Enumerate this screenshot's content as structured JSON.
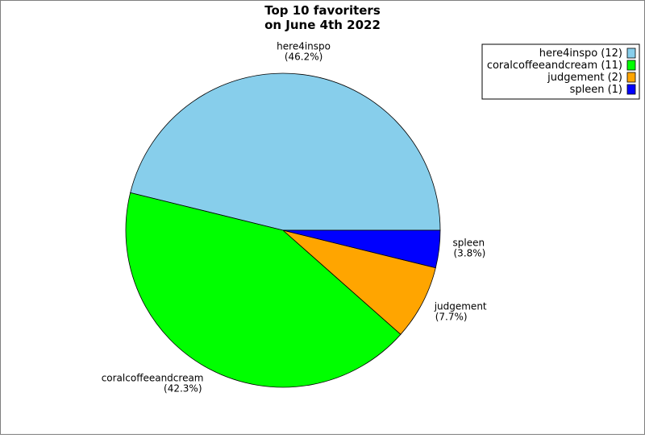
{
  "chart_data": {
    "type": "pie",
    "title_lines": [
      "Top 10 favoriters",
      "on June 4th 2022"
    ],
    "slices": [
      {
        "label": "here4inspo",
        "value": 12,
        "percent_text": "(46.2%)",
        "legend_text": "here4inspo (12)",
        "color": "#87ceeb"
      },
      {
        "label": "coralcoffeeandcream",
        "value": 11,
        "percent_text": "(42.3%)",
        "legend_text": "coralcoffeeandcream (11)",
        "color": "#00ff00"
      },
      {
        "label": "judgement",
        "value": 2,
        "percent_text": "(7.7%)",
        "legend_text": "judgement (2)",
        "color": "#ffa500"
      },
      {
        "label": "spleen",
        "value": 1,
        "percent_text": "(3.8%)",
        "legend_text": "spleen (1)",
        "color": "#0000ff"
      }
    ],
    "start_angle_deg": 0,
    "direction": "counterclockwise",
    "legend_position": "top-right"
  }
}
